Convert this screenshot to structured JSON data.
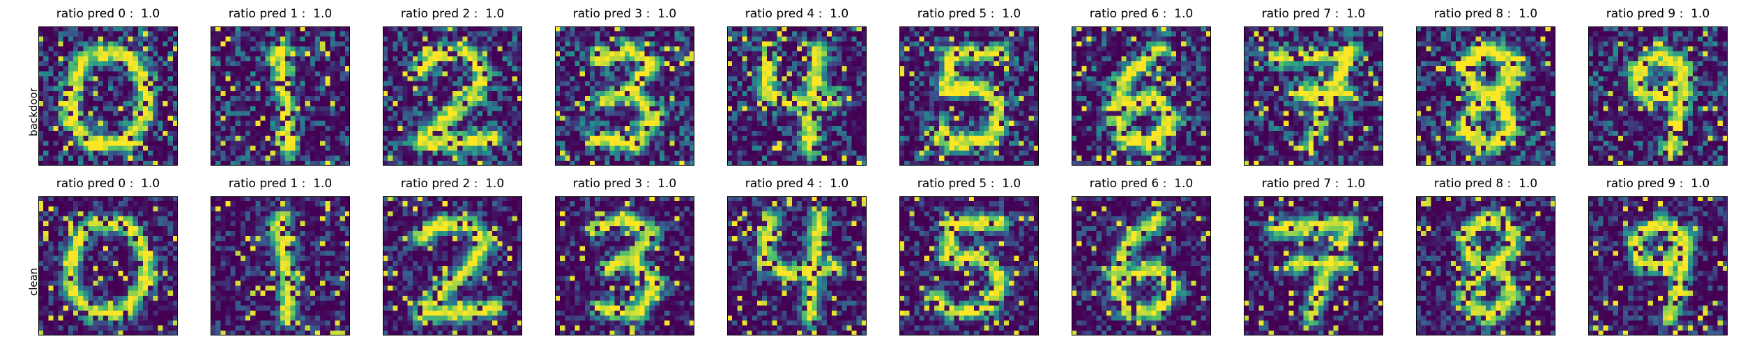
{
  "figure": {
    "row_labels": [
      "backdoor",
      "clean"
    ],
    "title_prefix": "ratio pred",
    "title_separator": " :  ",
    "colormap": "viridis",
    "colormap_stops": [
      "#440154",
      "#3b528b",
      "#21918c",
      "#5ec962",
      "#fde725"
    ],
    "panels": [
      {
        "row": 0,
        "digit": "0",
        "ratio": "1.0",
        "title": "ratio pred 0 :  1.0"
      },
      {
        "row": 0,
        "digit": "1",
        "ratio": "1.0",
        "title": "ratio pred 1 :  1.0"
      },
      {
        "row": 0,
        "digit": "2",
        "ratio": "1.0",
        "title": "ratio pred 2 :  1.0"
      },
      {
        "row": 0,
        "digit": "3",
        "ratio": "1.0",
        "title": "ratio pred 3 :  1.0"
      },
      {
        "row": 0,
        "digit": "4",
        "ratio": "1.0",
        "title": "ratio pred 4 :  1.0"
      },
      {
        "row": 0,
        "digit": "5",
        "ratio": "1.0",
        "title": "ratio pred 5 :  1.0"
      },
      {
        "row": 0,
        "digit": "6",
        "ratio": "1.0",
        "title": "ratio pred 6 :  1.0"
      },
      {
        "row": 0,
        "digit": "7",
        "ratio": "1.0",
        "title": "ratio pred 7 :  1.0"
      },
      {
        "row": 0,
        "digit": "8",
        "ratio": "1.0",
        "title": "ratio pred 8 :  1.0"
      },
      {
        "row": 0,
        "digit": "9",
        "ratio": "1.0",
        "title": "ratio pred 9 :  1.0"
      },
      {
        "row": 1,
        "digit": "0",
        "ratio": "1.0",
        "title": "ratio pred 0 :  1.0"
      },
      {
        "row": 1,
        "digit": "1",
        "ratio": "1.0",
        "title": "ratio pred 1 :  1.0"
      },
      {
        "row": 1,
        "digit": "2",
        "ratio": "1.0",
        "title": "ratio pred 2 :  1.0"
      },
      {
        "row": 1,
        "digit": "3",
        "ratio": "1.0",
        "title": "ratio pred 3 :  1.0"
      },
      {
        "row": 1,
        "digit": "4",
        "ratio": "1.0",
        "title": "ratio pred 4 :  1.0"
      },
      {
        "row": 1,
        "digit": "5",
        "ratio": "1.0",
        "title": "ratio pred 5 :  1.0"
      },
      {
        "row": 1,
        "digit": "6",
        "ratio": "1.0",
        "title": "ratio pred 6 :  1.0"
      },
      {
        "row": 1,
        "digit": "7",
        "ratio": "1.0",
        "title": "ratio pred 7 :  1.0"
      },
      {
        "row": 1,
        "digit": "8",
        "ratio": "1.0",
        "title": "ratio pred 8 :  1.0"
      },
      {
        "row": 1,
        "digit": "9",
        "ratio": "1.0",
        "title": "ratio pred 9 :  1.0"
      }
    ]
  }
}
